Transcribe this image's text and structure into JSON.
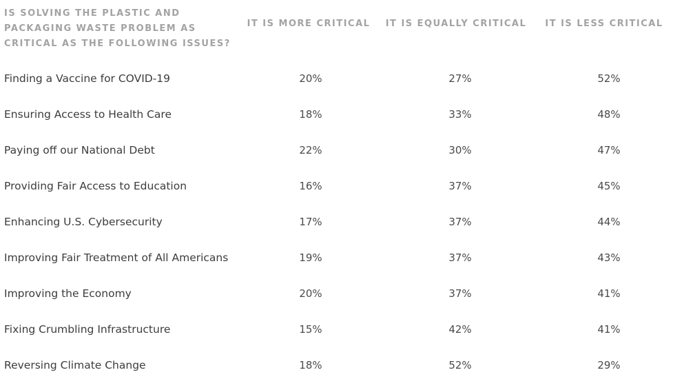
{
  "chart_data": {
    "type": "table",
    "title": "IS SOLVING THE PLASTIC AND PACKAGING WASTE PROBLEM AS CRITICAL AS THE FOLLOWING ISSUES?",
    "title_lines": [
      "IS SOLVING THE PLASTIC AND",
      "PACKAGING WASTE PROBLEM AS",
      "CRITICAL AS THE FOLLOWING ISSUES?"
    ],
    "columns": [
      "IT IS MORE CRITICAL",
      "IT IS EQUALLY CRITICAL",
      "IT IS LESS CRITICAL"
    ],
    "rows": [
      {
        "issue": "Finding a Vaccine for COVID-19",
        "more": "20%",
        "equally": "27%",
        "less": "52%"
      },
      {
        "issue": "Ensuring Access to Health Care",
        "more": "18%",
        "equally": "33%",
        "less": "48%"
      },
      {
        "issue": "Paying off our National Debt",
        "more": "22%",
        "equally": "30%",
        "less": "47%"
      },
      {
        "issue": "Providing Fair Access to Education",
        "more": "16%",
        "equally": "37%",
        "less": "45%"
      },
      {
        "issue": "Enhancing U.S. Cybersecurity",
        "more": "17%",
        "equally": "37%",
        "less": "44%"
      },
      {
        "issue": "Improving Fair Treatment of All Americans",
        "more": "19%",
        "equally": "37%",
        "less": "43%"
      },
      {
        "issue": "Improving the Economy",
        "more": "20%",
        "equally": "37%",
        "less": "41%"
      },
      {
        "issue": "Fixing Crumbling Infrastructure",
        "more": "15%",
        "equally": "42%",
        "less": "41%"
      },
      {
        "issue": "Reversing Climate Change",
        "more": "18%",
        "equally": "52%",
        "less": "29%"
      }
    ]
  }
}
